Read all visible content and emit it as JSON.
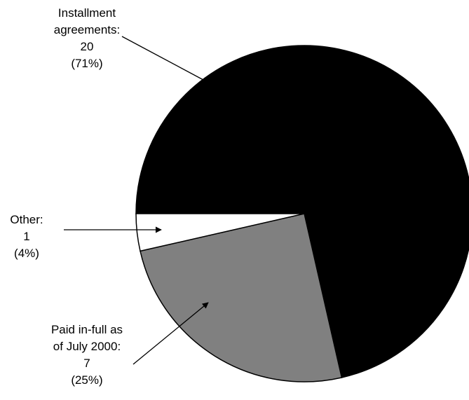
{
  "chart_data": {
    "type": "pie",
    "slices": [
      {
        "lines": [
          "Installment",
          "agreements:",
          "20",
          "(71%)"
        ],
        "value": 20,
        "percent": 71,
        "color": "#000000"
      },
      {
        "lines": [
          "Paid in-full as",
          "of July 2000:",
          "7",
          "(25%)"
        ],
        "value": 7,
        "percent": 25,
        "color": "#808080"
      },
      {
        "lines": [
          "Other:",
          "1",
          "(4%)"
        ],
        "value": 1,
        "percent": 4,
        "color": "#ffffff"
      }
    ]
  }
}
